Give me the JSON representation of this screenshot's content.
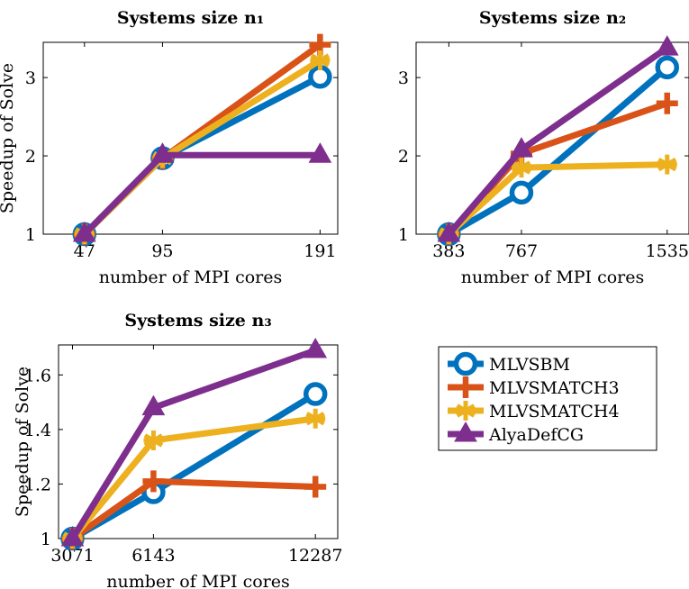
{
  "chart_data": [
    {
      "type": "line",
      "title": "Systems size n₁",
      "xlabel": "number of MPI cores",
      "ylabel": "Speedup of Solve",
      "x": [
        47,
        95,
        191
      ],
      "x_ticks": [
        "47",
        "95",
        "191"
      ],
      "ylim": [
        1,
        3.45
      ],
      "y_ticks": [
        "1",
        "2",
        "3"
      ],
      "y_tick_values": [
        1,
        2,
        3
      ],
      "grid": false,
      "series": [
        {
          "name": "MLVSBM",
          "values": [
            1,
            1.97,
            3.01
          ]
        },
        {
          "name": "MLVSMATCH3",
          "values": [
            1,
            1.97,
            3.42
          ]
        },
        {
          "name": "MLVSMATCH4",
          "values": [
            1,
            1.97,
            3.22
          ]
        },
        {
          "name": "AlyaDefCG",
          "values": [
            1,
            2.01,
            2.01
          ]
        }
      ]
    },
    {
      "type": "line",
      "title": "Systems size n₂",
      "xlabel": "number of MPI cores",
      "ylabel": "",
      "x": [
        383,
        767,
        1535
      ],
      "x_ticks": [
        "383",
        "767",
        "1535"
      ],
      "ylim": [
        1,
        3.45
      ],
      "y_ticks": [
        "1",
        "2",
        "3"
      ],
      "y_tick_values": [
        1,
        2,
        3
      ],
      "grid": false,
      "series": [
        {
          "name": "MLVSBM",
          "values": [
            1,
            1.53,
            3.13
          ]
        },
        {
          "name": "MLVSMATCH3",
          "values": [
            1,
            2.03,
            2.67
          ]
        },
        {
          "name": "MLVSMATCH4",
          "values": [
            1,
            1.85,
            1.89
          ]
        },
        {
          "name": "AlyaDefCG",
          "values": [
            1,
            2.08,
            3.38
          ]
        }
      ]
    },
    {
      "type": "line",
      "title": "Systems size n₃",
      "xlabel": "number of MPI cores",
      "ylabel": "Speedup of Solve",
      "x": [
        3071,
        6143,
        12287
      ],
      "x_ticks": [
        "3071",
        "6143",
        "12287"
      ],
      "ylim": [
        1,
        1.71
      ],
      "y_ticks": [
        "1",
        "1.2",
        "1.4",
        "1.6"
      ],
      "y_tick_values": [
        1,
        1.2,
        1.4,
        1.6
      ],
      "grid": false,
      "series": [
        {
          "name": "MLVSBM",
          "values": [
            1,
            1.17,
            1.53
          ]
        },
        {
          "name": "MLVSMATCH3",
          "values": [
            1,
            1.21,
            1.19
          ]
        },
        {
          "name": "MLVSMATCH4",
          "values": [
            1,
            1.36,
            1.44
          ]
        },
        {
          "name": "AlyaDefCG",
          "values": [
            1,
            1.48,
            1.69
          ]
        }
      ]
    }
  ],
  "legend": {
    "placement": "right-of-bottom-left-panel",
    "entries": [
      {
        "label": "MLVSBM",
        "color": "#0072bd",
        "marker": "circle"
      },
      {
        "label": "MLVSMATCH3",
        "color": "#d95319",
        "marker": "plus"
      },
      {
        "label": "MLVSMATCH4",
        "color": "#edb120",
        "marker": "asterisk"
      },
      {
        "label": "AlyaDefCG",
        "color": "#7e2f8e",
        "marker": "triangle"
      }
    ]
  }
}
